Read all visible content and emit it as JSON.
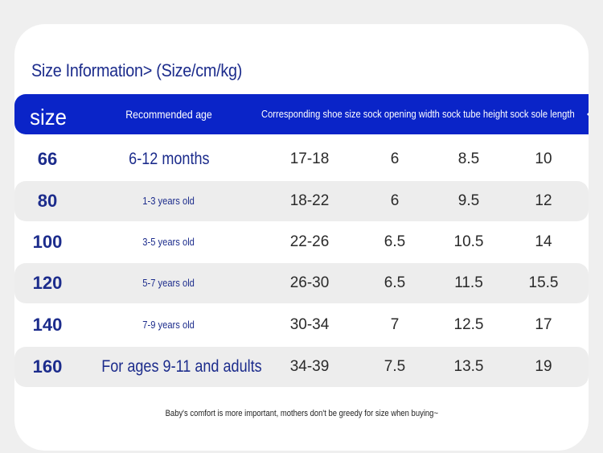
{
  "title": "Size Information> (Size/cm/kg)",
  "header": {
    "size": "size",
    "age": "Recommended age",
    "rest": "Corresponding shoe size sock opening width sock tube height sock sole length"
  },
  "rows": [
    {
      "size": "66",
      "age": "6-12 months",
      "shoe": "17-18",
      "opening": "6",
      "tube": "8.5",
      "sole": "10"
    },
    {
      "size": "80",
      "age": "1-3 years old",
      "shoe": "18-22",
      "opening": "6",
      "tube": "9.5",
      "sole": "12"
    },
    {
      "size": "100",
      "age": "3-5 years old",
      "shoe": "22-26",
      "opening": "6.5",
      "tube": "10.5",
      "sole": "14"
    },
    {
      "size": "120",
      "age": "5-7 years old",
      "shoe": "26-30",
      "opening": "6.5",
      "tube": "11.5",
      "sole": "15.5"
    },
    {
      "size": "140",
      "age": "7-9 years old",
      "shoe": "30-34",
      "opening": "7",
      "tube": "12.5",
      "sole": "17"
    },
    {
      "size": "160",
      "age": "For ages 9-11 and adults",
      "shoe": "34-39",
      "opening": "7.5",
      "tube": "13.5",
      "sole": "19"
    }
  ],
  "footer": "Baby's comfort is more important, mothers don't be greedy for size when buying~",
  "colors": {
    "header_bg": "#0a24c8",
    "accent_text": "#1c2c8c",
    "shaded_row": "#ededed",
    "page_bg": "#efefef"
  }
}
